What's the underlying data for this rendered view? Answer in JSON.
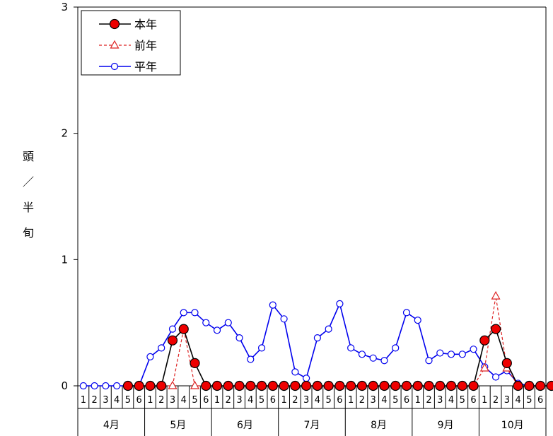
{
  "chart_data": {
    "type": "line",
    "ylabel": "頭／半旬",
    "ylim": [
      0,
      3
    ],
    "yticks": [
      0,
      1,
      2,
      3
    ],
    "months": [
      "4月",
      "5月",
      "6月",
      "7月",
      "8月",
      "9月",
      "10月"
    ],
    "pentads": [
      "1",
      "2",
      "3",
      "4",
      "5",
      "6"
    ],
    "legend_position": "top-left",
    "series": [
      {
        "name": "本年",
        "color": "#000000",
        "marker_fill": "#ee0000",
        "style": "solid",
        "marker": "circle-filled",
        "start_index": 4,
        "values": [
          0,
          0,
          0,
          0,
          0.36,
          0.45,
          0.18,
          0,
          0,
          0,
          0,
          0,
          0,
          0,
          0,
          0,
          0,
          0,
          0,
          0,
          0,
          0,
          0,
          0,
          0,
          0,
          0,
          0,
          0,
          0,
          0,
          0,
          0.36,
          0.45,
          0.18,
          0,
          0,
          0,
          0,
          0,
          0,
          0,
          0,
          0,
          0,
          0,
          0,
          0,
          0
        ]
      },
      {
        "name": "前年",
        "color": "#dd2222",
        "style": "dashed",
        "marker": "triangle-open",
        "start_index": 4,
        "values": [
          0,
          0,
          0,
          0,
          0,
          0.45,
          0,
          0,
          0,
          0,
          0,
          0,
          0,
          0,
          0,
          0,
          0,
          0,
          0,
          0,
          0,
          0,
          0,
          0,
          0,
          0,
          0,
          0,
          0,
          0,
          0,
          0,
          0.14,
          0.71,
          0.14,
          0,
          0,
          0,
          0,
          0,
          0,
          0,
          0,
          0,
          0,
          0,
          0,
          0,
          0
        ]
      },
      {
        "name": "平年",
        "color": "#0000ee",
        "style": "solid",
        "marker": "circle-open",
        "start_index": 0,
        "values": [
          0,
          0,
          0,
          0,
          0,
          0,
          0.23,
          0.3,
          0.45,
          0.58,
          0.58,
          0.5,
          0.44,
          0.5,
          0.38,
          0.21,
          0.3,
          0.64,
          0.53,
          0.11,
          0.06,
          0.38,
          0.45,
          0.65,
          0.3,
          0.25,
          0.22,
          0.2,
          0.3,
          0.58,
          0.52,
          0.2,
          0.26,
          0.25,
          0.25,
          0.29,
          0.15,
          0.07,
          0.12,
          0.02,
          0,
          0
        ]
      }
    ]
  }
}
